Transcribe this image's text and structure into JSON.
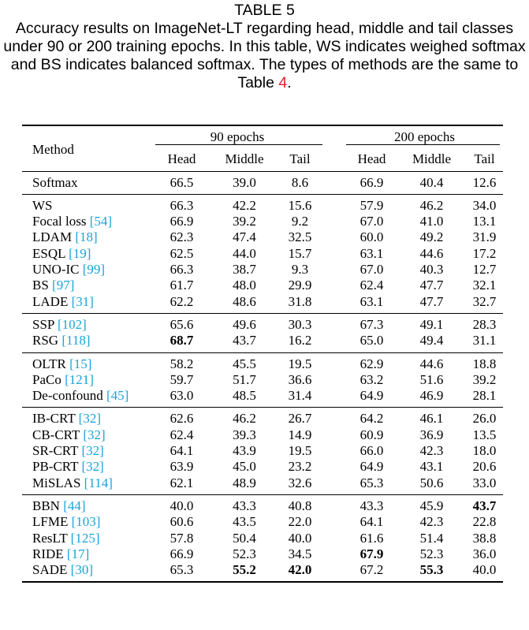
{
  "caption": {
    "label": "TABLE 5",
    "text_before_ref": "Accuracy results on ImageNet-LT regarding head, middle and tail classes under 90 or 200 training epochs. In this table, WS indicates weighed softmax and BS indicates balanced softmax. The types of methods are the same to Table ",
    "ref": "4",
    "text_after_ref": "."
  },
  "table": {
    "method_header": "Method",
    "group_headers": [
      "90 epochs",
      "200 epochs"
    ],
    "sub_headers": [
      "Head",
      "Middle",
      "Tail",
      "Head",
      "Middle",
      "Tail"
    ],
    "groups": [
      [
        {
          "name": "Softmax",
          "cite": "",
          "values": [
            "66.5",
            "39.0",
            "8.6",
            "66.9",
            "40.4",
            "12.6"
          ],
          "bold": []
        }
      ],
      [
        {
          "name": "WS",
          "cite": "",
          "values": [
            "66.3",
            "42.2",
            "15.6",
            "57.9",
            "46.2",
            "34.0"
          ],
          "bold": []
        },
        {
          "name": "Focal loss",
          "cite": "[54]",
          "values": [
            "66.9",
            "39.2",
            "9.2",
            "67.0",
            "41.0",
            "13.1"
          ],
          "bold": []
        },
        {
          "name": "LDAM",
          "cite": "[18]",
          "values": [
            "62.3",
            "47.4",
            "32.5",
            "60.0",
            "49.2",
            "31.9"
          ],
          "bold": []
        },
        {
          "name": "ESQL",
          "cite": "[19]",
          "values": [
            "62.5",
            "44.0",
            "15.7",
            "63.1",
            "44.6",
            "17.2"
          ],
          "bold": []
        },
        {
          "name": "UNO-IC",
          "cite": "[99]",
          "values": [
            "66.3",
            "38.7",
            "9.3",
            "67.0",
            "40.3",
            "12.7"
          ],
          "bold": []
        },
        {
          "name": "BS",
          "cite": "[97]",
          "values": [
            "61.7",
            "48.0",
            "29.9",
            "62.4",
            "47.7",
            "32.1"
          ],
          "bold": []
        },
        {
          "name": "LADE",
          "cite": "[31]",
          "values": [
            "62.2",
            "48.6",
            "31.8",
            "63.1",
            "47.7",
            "32.7"
          ],
          "bold": []
        }
      ],
      [
        {
          "name": "SSP",
          "cite": "[102]",
          "values": [
            "65.6",
            "49.6",
            "30.3",
            "67.3",
            "49.1",
            "28.3"
          ],
          "bold": []
        },
        {
          "name": "RSG",
          "cite": "[118]",
          "values": [
            "68.7",
            "43.7",
            "16.2",
            "65.0",
            "49.4",
            "31.1"
          ],
          "bold": [
            0
          ]
        }
      ],
      [
        {
          "name": "OLTR",
          "cite": "[15]",
          "values": [
            "58.2",
            "45.5",
            "19.5",
            "62.9",
            "44.6",
            "18.8"
          ],
          "bold": []
        },
        {
          "name": "PaCo",
          "cite": "[121]",
          "values": [
            "59.7",
            "51.7",
            "36.6",
            "63.2",
            "51.6",
            "39.2"
          ],
          "bold": []
        },
        {
          "name": "De-confound",
          "cite": "[45]",
          "values": [
            "63.0",
            "48.5",
            "31.4",
            "64.9",
            "46.9",
            "28.1"
          ],
          "bold": []
        }
      ],
      [
        {
          "name": "IB-CRT",
          "cite": "[32]",
          "values": [
            "62.6",
            "46.2",
            "26.7",
            "64.2",
            "46.1",
            "26.0"
          ],
          "bold": []
        },
        {
          "name": "CB-CRT",
          "cite": "[32]",
          "values": [
            "62.4",
            "39.3",
            "14.9",
            "60.9",
            "36.9",
            "13.5"
          ],
          "bold": []
        },
        {
          "name": "SR-CRT",
          "cite": "[32]",
          "values": [
            "64.1",
            "43.9",
            "19.5",
            "66.0",
            "42.3",
            "18.0"
          ],
          "bold": []
        },
        {
          "name": "PB-CRT",
          "cite": "[32]",
          "values": [
            "63.9",
            "45.0",
            "23.2",
            "64.9",
            "43.1",
            "20.6"
          ],
          "bold": []
        },
        {
          "name": "MiSLAS",
          "cite": "[114]",
          "values": [
            "62.1",
            "48.9",
            "32.6",
            "65.3",
            "50.6",
            "33.0"
          ],
          "bold": []
        }
      ],
      [
        {
          "name": "BBN",
          "cite": "[44]",
          "values": [
            "40.0",
            "43.3",
            "40.8",
            "43.3",
            "45.9",
            "43.7"
          ],
          "bold": [
            5
          ]
        },
        {
          "name": "LFME",
          "cite": "[103]",
          "values": [
            "60.6",
            "43.5",
            "22.0",
            "64.1",
            "42.3",
            "22.8"
          ],
          "bold": []
        },
        {
          "name": "ResLT",
          "cite": "[125]",
          "values": [
            "57.8",
            "50.4",
            "40.0",
            "61.6",
            "51.4",
            "38.8"
          ],
          "bold": []
        },
        {
          "name": "RIDE",
          "cite": "[17]",
          "values": [
            "66.9",
            "52.3",
            "34.5",
            "67.9",
            "52.3",
            "36.0"
          ],
          "bold": [
            3
          ]
        },
        {
          "name": "SADE",
          "cite": "[30]",
          "values": [
            "65.3",
            "55.2",
            "42.0",
            "67.2",
            "55.3",
            "40.0"
          ],
          "bold": [
            1,
            2,
            4
          ]
        }
      ]
    ]
  },
  "colors": {
    "ref": "#e8202a",
    "cite": "#1aa3d9"
  }
}
